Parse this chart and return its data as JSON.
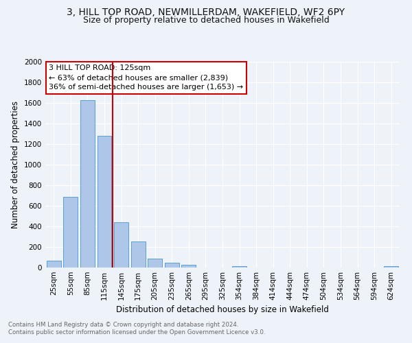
{
  "title": "3, HILL TOP ROAD, NEWMILLERDAM, WAKEFIELD, WF2 6PY",
  "subtitle": "Size of property relative to detached houses in Wakefield",
  "xlabel": "Distribution of detached houses by size in Wakefield",
  "ylabel": "Number of detached properties",
  "footnote1": "Contains HM Land Registry data © Crown copyright and database right 2024.",
  "footnote2": "Contains public sector information licensed under the Open Government Licence v3.0.",
  "bar_labels": [
    "25sqm",
    "55sqm",
    "85sqm",
    "115sqm",
    "145sqm",
    "175sqm",
    "205sqm",
    "235sqm",
    "265sqm",
    "295sqm",
    "325sqm",
    "354sqm",
    "384sqm",
    "414sqm",
    "444sqm",
    "474sqm",
    "504sqm",
    "534sqm",
    "564sqm",
    "594sqm",
    "624sqm"
  ],
  "bar_values": [
    65,
    690,
    1630,
    1280,
    440,
    255,
    90,
    50,
    28,
    0,
    0,
    15,
    0,
    0,
    0,
    0,
    0,
    0,
    0,
    0,
    15
  ],
  "bar_color": "#aec6e8",
  "bar_edge_color": "#5a9fd4",
  "bar_width": 0.85,
  "ylim": [
    0,
    2000
  ],
  "yticks": [
    0,
    200,
    400,
    600,
    800,
    1000,
    1200,
    1400,
    1600,
    1800,
    2000
  ],
  "vline_color": "#cc0000",
  "annotation_title": "3 HILL TOP ROAD: 125sqm",
  "annotation_line1": "← 63% of detached houses are smaller (2,839)",
  "annotation_line2": "36% of semi-detached houses are larger (1,653) →",
  "annotation_box_color": "#ffffff",
  "annotation_box_edge": "#cc0000",
  "bg_color": "#eef2f9",
  "grid_color": "#ffffff",
  "title_fontsize": 10,
  "subtitle_fontsize": 9,
  "annotation_fontsize": 8,
  "axis_label_fontsize": 8.5,
  "tick_fontsize": 7.5,
  "footnote_fontsize": 6.2,
  "footnote_color": "#666666"
}
